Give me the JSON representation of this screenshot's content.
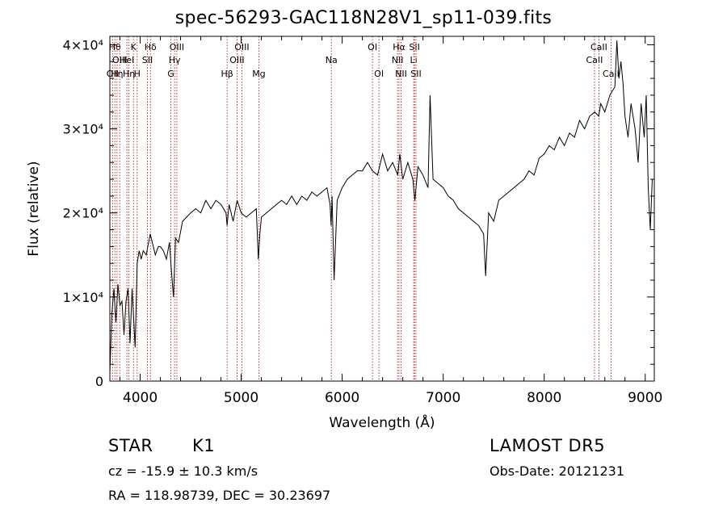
{
  "header": {
    "title": "spec-56293-GAC118N28V1_sp11-039.fits"
  },
  "info": {
    "object_class": "STAR",
    "subclass": "K1",
    "survey": "LAMOST DR5",
    "redshift_line": "cz = -15.9 ± 10.3 km/s",
    "obs_date_line": "Obs-Date: 20121231",
    "coords_line": "RA = 118.98739, DEC =  30.23697"
  },
  "chart_data": {
    "type": "line",
    "title": "spec-56293-GAC118N28V1_sp11-039.fits",
    "xlabel": "Wavelength (Å)",
    "ylabel": "Flux (relative)",
    "xlim": [
      3700,
      9090
    ],
    "ylim": [
      0,
      41000
    ],
    "grid": false,
    "x_ticks": [
      {
        "value": 4000,
        "label": "4000"
      },
      {
        "value": 5000,
        "label": "5000"
      },
      {
        "value": 6000,
        "label": "6000"
      },
      {
        "value": 7000,
        "label": "7000"
      },
      {
        "value": 8000,
        "label": "8000"
      },
      {
        "value": 9000,
        "label": "9000"
      }
    ],
    "y_ticks": [
      {
        "value": 0,
        "label": "0"
      },
      {
        "value": 10000,
        "label": "1×10⁴"
      },
      {
        "value": 20000,
        "label": "2×10⁴"
      },
      {
        "value": 30000,
        "label": "3×10⁴"
      },
      {
        "value": 40000,
        "label": "4×10⁴"
      }
    ],
    "line_color": "#000000",
    "marker_color": "#b22222",
    "series": [
      {
        "x": [
          3700,
          3720,
          3740,
          3760,
          3780,
          3800,
          3820,
          3840,
          3860,
          3880,
          3900,
          3920,
          3935,
          3950,
          3970,
          3990,
          4010,
          4030,
          4060,
          4100,
          4120,
          4150,
          4180,
          4200,
          4230,
          4260,
          4290,
          4310,
          4330,
          4350,
          4380,
          4420,
          4460,
          4500,
          4550,
          4600,
          4650,
          4700,
          4750,
          4800,
          4850,
          4860,
          4880,
          4920,
          4960,
          5000,
          5050,
          5100,
          5150,
          5170,
          5185,
          5200,
          5250,
          5300,
          5350,
          5400,
          5450,
          5500,
          5550,
          5600,
          5650,
          5700,
          5750,
          5800,
          5850,
          5880,
          5890,
          5900,
          5920,
          5950,
          6000,
          6050,
          6100,
          6150,
          6200,
          6250,
          6300,
          6350,
          6400,
          6450,
          6500,
          6550,
          6570,
          6600,
          6650,
          6700,
          6720,
          6750,
          6800,
          6850,
          6870,
          6900,
          6950,
          7000,
          7050,
          7100,
          7150,
          7200,
          7250,
          7300,
          7350,
          7400,
          7420,
          7450,
          7500,
          7550,
          7600,
          7650,
          7700,
          7750,
          7800,
          7850,
          7900,
          7950,
          8000,
          8050,
          8100,
          8150,
          8200,
          8250,
          8300,
          8350,
          8400,
          8450,
          8500,
          8540,
          8560,
          8600,
          8650,
          8700,
          8720,
          8740,
          8760,
          8780,
          8800,
          8830,
          8860,
          8900,
          8930,
          8960,
          8990,
          9010,
          9030,
          9050,
          9070
        ],
        "y": [
          1000,
          8000,
          11000,
          7000,
          11500,
          9000,
          9500,
          5500,
          9500,
          11000,
          4500,
          11000,
          7500,
          4000,
          14000,
          15500,
          14500,
          15500,
          15000,
          17500,
          16500,
          15000,
          16000,
          16000,
          15500,
          14500,
          16500,
          13000,
          10000,
          17000,
          16500,
          19000,
          19500,
          20000,
          20500,
          20000,
          21500,
          20500,
          21500,
          21000,
          20000,
          18500,
          21000,
          19000,
          21500,
          20000,
          19500,
          20000,
          20500,
          14500,
          17500,
          19500,
          20000,
          20500,
          21000,
          21500,
          21000,
          22000,
          21000,
          22000,
          21500,
          22500,
          22000,
          22500,
          23000,
          21000,
          18500,
          22000,
          12000,
          21500,
          23000,
          24000,
          24500,
          25000,
          25000,
          26000,
          25000,
          24500,
          27000,
          25000,
          26000,
          24500,
          27000,
          24000,
          26000,
          24000,
          21500,
          25500,
          24500,
          23000,
          34000,
          24000,
          23500,
          23000,
          22000,
          21500,
          20500,
          20000,
          19500,
          19000,
          18500,
          17500,
          12500,
          20000,
          19000,
          21500,
          22000,
          22500,
          23000,
          23500,
          24000,
          25000,
          24500,
          26500,
          27000,
          28000,
          27500,
          29000,
          28000,
          29500,
          29000,
          31000,
          30000,
          31500,
          32000,
          31500,
          33000,
          32000,
          34000,
          35000,
          40500,
          36000,
          38000,
          35500,
          31500,
          29000,
          33000,
          30000,
          26000,
          33000,
          29000,
          34000,
          23000,
          18000,
          24000
        ]
      }
    ],
    "line_markers": [
      {
        "wavelength": 3727,
        "label": "OII",
        "row": 3
      },
      {
        "wavelength": 3750,
        "label": "Hθ",
        "row": 1
      },
      {
        "wavelength": 3771,
        "label": "Hη",
        "row": 3
      },
      {
        "wavelength": 3798,
        "label": "OIII",
        "row": 2
      },
      {
        "wavelength": 3869,
        "label": "HeI",
        "row": 2
      },
      {
        "wavelength": 3889,
        "label": "Hη",
        "row": 3
      },
      {
        "wavelength": 3934,
        "label": "K",
        "row": 1
      },
      {
        "wavelength": 3970,
        "label": "H",
        "row": 3
      },
      {
        "wavelength": 4072,
        "label": "SII",
        "row": 2
      },
      {
        "wavelength": 4102,
        "label": "Hδ",
        "row": 1
      },
      {
        "wavelength": 4304,
        "label": "G",
        "row": 3
      },
      {
        "wavelength": 4341,
        "label": "Hγ",
        "row": 2
      },
      {
        "wavelength": 4363,
        "label": "OIII",
        "row": 1
      },
      {
        "wavelength": 4861,
        "label": "Hβ",
        "row": 3
      },
      {
        "wavelength": 4959,
        "label": "OIII",
        "row": 2
      },
      {
        "wavelength": 5007,
        "label": "OIII",
        "row": 1
      },
      {
        "wavelength": 5175,
        "label": "Mg",
        "row": 3
      },
      {
        "wavelength": 5893,
        "label": "Na",
        "row": 2
      },
      {
        "wavelength": 6300,
        "label": "OI",
        "row": 1
      },
      {
        "wavelength": 6364,
        "label": "OI",
        "row": 3
      },
      {
        "wavelength": 6548,
        "label": "NII",
        "row": 2
      },
      {
        "wavelength": 6563,
        "label": "Hα",
        "row": 1
      },
      {
        "wavelength": 6583,
        "label": "NII",
        "row": 3
      },
      {
        "wavelength": 6708,
        "label": "Li",
        "row": 2
      },
      {
        "wavelength": 6716,
        "label": "SII",
        "row": 1
      },
      {
        "wavelength": 6731,
        "label": "SII",
        "row": 3
      },
      {
        "wavelength": 8498,
        "label": "CaII",
        "row": 2
      },
      {
        "wavelength": 8542,
        "label": "CaII",
        "row": 1
      },
      {
        "wavelength": 8662,
        "label": "CaII",
        "row": 3
      }
    ]
  }
}
